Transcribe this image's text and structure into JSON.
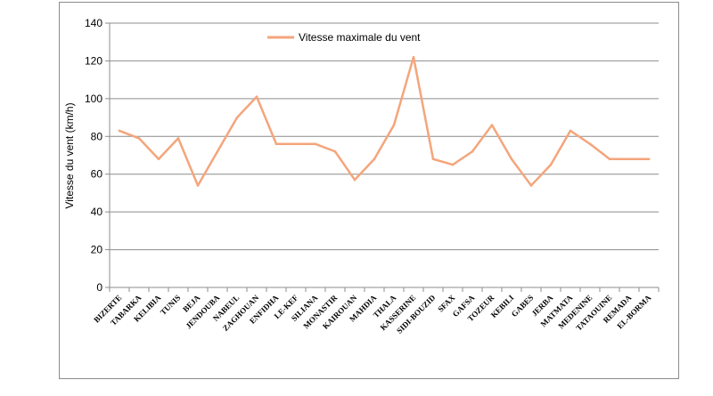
{
  "chart_data": {
    "type": "line",
    "ylabel": "Vitesse du vent (km/h)",
    "xlabel": "",
    "ylim": [
      0,
      140
    ],
    "yticks": [
      0,
      20,
      40,
      60,
      80,
      100,
      120,
      140
    ],
    "grid": "horizontal",
    "legend_position": "top-center",
    "categories": [
      "BIZERTE",
      "TABARKA",
      "KELIBIA",
      "TUNIS",
      "BEJA",
      "JENDOUBA",
      "NABEUL",
      "ZAGHOUAN",
      "ENFIDHA",
      "LE-KEF",
      "SILIANA",
      "MONASTIR",
      "KAIROUAN",
      "MAHDIA",
      "THALA",
      "KASSERINE",
      "SIDI-BOUZID",
      "SFAX",
      "GAFSA",
      "TOZEUR",
      "KEBILI",
      "GABES",
      "JERBA",
      "MATMATA",
      "MEDENINE",
      "TATAOUINE",
      "REMADA",
      "EL-BORMA"
    ],
    "series": [
      {
        "name": "Vitesse maximale du vent",
        "color": "#f4a57c",
        "values": [
          83,
          79,
          68,
          79,
          54,
          72,
          90,
          101,
          76,
          76,
          76,
          72,
          57,
          68,
          86,
          122,
          68,
          65,
          72,
          86,
          68,
          54,
          65,
          83,
          76,
          68,
          68,
          68
        ]
      }
    ]
  }
}
